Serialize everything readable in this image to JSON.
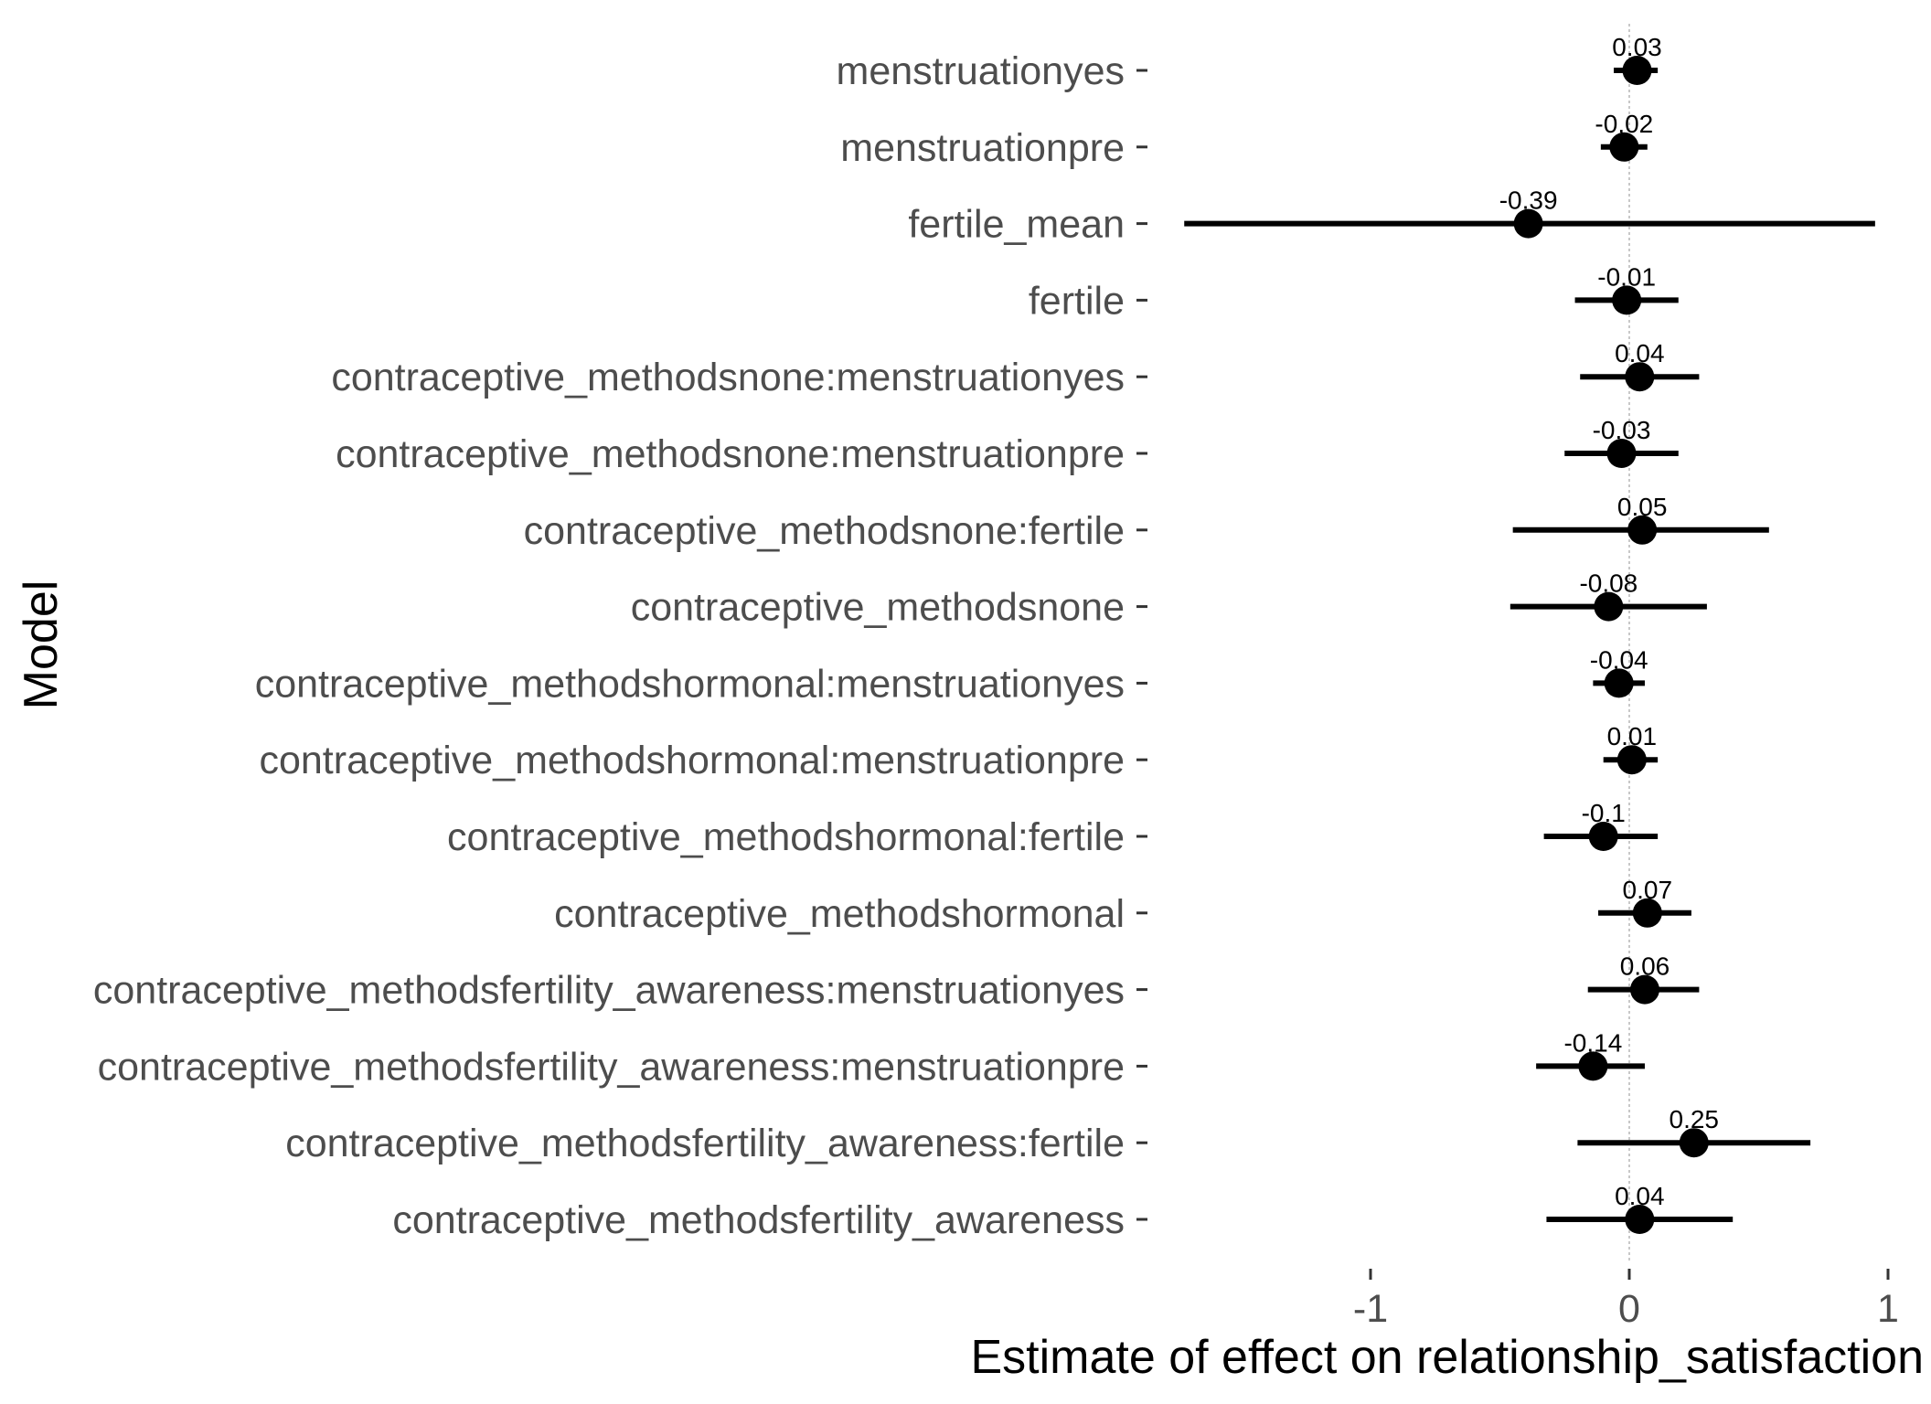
{
  "chart_data": {
    "type": "scatter",
    "subtype": "coefficient-plot",
    "title": "",
    "xlabel": "Estimate of effect on relationship_satisfaction",
    "ylabel": "Model",
    "xlim": [
      -1.75,
      1.05
    ],
    "xticks": [
      -1,
      0,
      1
    ],
    "xtick_labels": [
      "-1",
      "0",
      "1"
    ],
    "reference_line_x": 0,
    "grid": false,
    "legend": "none",
    "colors": {
      "point": "#000000",
      "errorbar": "#000000",
      "reference": "#c8c8c8",
      "category_text": "#4d4d4d"
    },
    "terms": [
      {
        "term": "menstruationyes",
        "estimate": 0.03,
        "lower": -0.06,
        "upper": 0.11,
        "label": "0.03"
      },
      {
        "term": "menstruationpre",
        "estimate": -0.02,
        "lower": -0.11,
        "upper": 0.07,
        "label": "-0.02"
      },
      {
        "term": "fertile_mean",
        "estimate": -0.39,
        "lower": -1.72,
        "upper": 0.95,
        "label": "-0.39"
      },
      {
        "term": "fertile",
        "estimate": -0.01,
        "lower": -0.21,
        "upper": 0.19,
        "label": "-0.01"
      },
      {
        "term": "contraceptive_methodsnone:menstruationyes",
        "estimate": 0.04,
        "lower": -0.19,
        "upper": 0.27,
        "label": "0.04"
      },
      {
        "term": "contraceptive_methodsnone:menstruationpre",
        "estimate": -0.03,
        "lower": -0.25,
        "upper": 0.19,
        "label": "-0.03"
      },
      {
        "term": "contraceptive_methodsnone:fertile",
        "estimate": 0.05,
        "lower": -0.45,
        "upper": 0.54,
        "label": "0.05"
      },
      {
        "term": "contraceptive_methodsnone",
        "estimate": -0.08,
        "lower": -0.46,
        "upper": 0.3,
        "label": "-0.08"
      },
      {
        "term": "contraceptive_methodshormonal:menstruationyes",
        "estimate": -0.04,
        "lower": -0.14,
        "upper": 0.06,
        "label": "-0.04"
      },
      {
        "term": "contraceptive_methodshormonal:menstruationpre",
        "estimate": 0.01,
        "lower": -0.1,
        "upper": 0.11,
        "label": "0.01"
      },
      {
        "term": "contraceptive_methodshormonal:fertile",
        "estimate": -0.1,
        "lower": -0.33,
        "upper": 0.11,
        "label": "-0.1"
      },
      {
        "term": "contraceptive_methodshormonal",
        "estimate": 0.07,
        "lower": -0.12,
        "upper": 0.24,
        "label": "0.07"
      },
      {
        "term": "contraceptive_methodsfertility_awareness:menstruationyes",
        "estimate": 0.06,
        "lower": -0.16,
        "upper": 0.27,
        "label": "0.06"
      },
      {
        "term": "contraceptive_methodsfertility_awareness:menstruationpre",
        "estimate": -0.14,
        "lower": -0.36,
        "upper": 0.06,
        "label": "-0.14"
      },
      {
        "term": "contraceptive_methodsfertility_awareness:fertile",
        "estimate": 0.25,
        "lower": -0.2,
        "upper": 0.7,
        "label": "0.25"
      },
      {
        "term": "contraceptive_methodsfertility_awareness",
        "estimate": 0.04,
        "lower": -0.32,
        "upper": 0.4,
        "label": "0.04"
      }
    ]
  }
}
